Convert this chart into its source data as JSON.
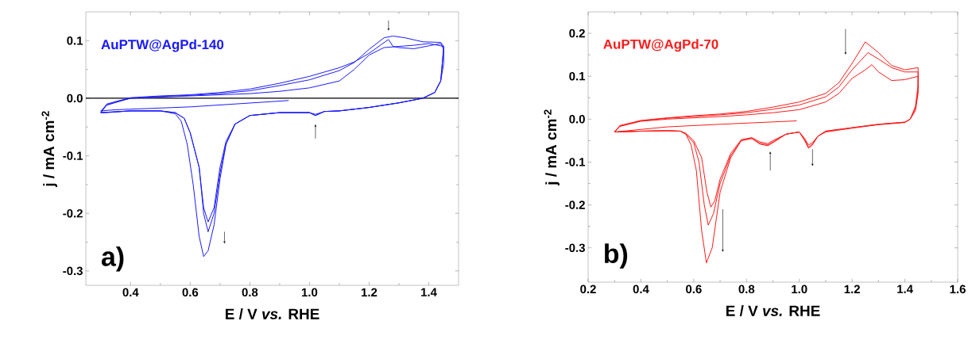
{
  "chart_data": [
    {
      "type": "line",
      "xlabel": "E / V *vs.* RHE",
      "ylabel": "j / mA cm$^{-2}$",
      "annotations": [
        "AuPTW@AgPd-140",
        "a)"
      ],
      "xlim": [
        0.25,
        1.5
      ],
      "ylim": [
        -0.325,
        0.15
      ],
      "xticks": [
        0.4,
        0.6,
        0.8,
        {
          "value": 1.0,
          "label": "1.0"
        },
        1.2,
        1.4
      ],
      "yticks": [
        -0.3,
        -0.2,
        -0.1,
        {
          "value": 0,
          "label": "0.0"
        },
        0.1
      ],
      "ref_lines": [
        {
          "axis": "y",
          "value": 0,
          "color": "#000000"
        }
      ],
      "series": [
        {
          "color": "#1a1aff",
          "x": [
            0.93,
            0.6,
            0.35,
            0.3,
            0.32,
            0.35,
            0.4,
            0.5,
            0.6,
            0.7,
            0.8,
            0.9,
            1.0,
            1.1,
            1.15,
            1.2,
            1.25,
            1.28,
            1.32,
            1.38,
            1.44,
            1.45,
            1.45,
            1.44,
            1.42,
            1.38,
            1.35,
            1.3,
            1.2,
            1.1,
            1.05,
            1.02,
            1.0,
            0.9,
            0.8,
            0.75,
            0.72,
            0.7,
            0.68,
            0.66,
            0.645,
            0.63,
            0.61,
            0.59,
            0.57,
            0.55,
            0.5,
            0.4,
            0.32,
            0.3,
            0.32,
            0.4,
            0.5,
            0.6,
            0.7,
            0.8,
            0.9,
            1.0,
            1.1,
            1.15,
            1.2,
            1.24,
            1.265,
            1.28,
            1.3,
            1.35,
            1.44,
            1.45,
            1.44,
            1.42,
            1.38,
            1.3,
            1.2,
            1.1,
            1.05,
            1.02,
            1.0,
            0.9,
            0.8,
            0.75,
            0.72,
            0.7,
            0.68,
            0.66,
            0.645,
            0.63,
            0.6,
            0.58,
            0.55,
            0.5,
            0.4,
            0.3,
            0.32,
            0.4,
            0.5,
            0.6,
            0.7,
            0.8,
            0.9,
            1.0,
            1.1,
            1.15,
            1.2,
            1.25,
            1.3,
            1.35,
            1.4,
            1.45,
            1.44,
            1.42,
            1.38,
            1.3,
            1.2,
            1.1,
            1.05,
            1.02,
            1.0,
            0.9,
            0.8,
            0.75,
            0.72,
            0.7,
            0.68,
            0.66,
            0.645,
            0.63,
            0.6,
            0.58,
            0.55,
            0.5,
            0.4,
            0.3
          ],
          "values": [
            -0.004,
            -0.015,
            -0.02,
            -0.022,
            -0.012,
            -0.006,
            0.0,
            0.003,
            0.005,
            0.008,
            0.013,
            0.022,
            0.032,
            0.048,
            0.062,
            0.085,
            0.105,
            0.108,
            0.105,
            0.098,
            0.097,
            0.09,
            0.06,
            0.03,
            0.01,
            0.0,
            -0.003,
            -0.008,
            -0.016,
            -0.022,
            -0.023,
            -0.03,
            -0.025,
            -0.025,
            -0.03,
            -0.045,
            -0.08,
            -0.14,
            -0.22,
            -0.265,
            -0.275,
            -0.24,
            -0.15,
            -0.08,
            -0.04,
            -0.027,
            -0.022,
            -0.022,
            -0.025,
            -0.025,
            -0.01,
            0.001,
            0.004,
            0.006,
            0.01,
            0.016,
            0.026,
            0.038,
            0.053,
            0.063,
            0.078,
            0.093,
            0.102,
            0.09,
            0.088,
            0.086,
            0.095,
            0.085,
            0.03,
            0.01,
            0.0,
            -0.008,
            -0.016,
            -0.022,
            -0.023,
            -0.03,
            -0.025,
            -0.025,
            -0.03,
            -0.045,
            -0.08,
            -0.13,
            -0.2,
            -0.232,
            -0.2,
            -0.12,
            -0.06,
            -0.035,
            -0.025,
            -0.022,
            -0.022,
            -0.025,
            -0.012,
            0.0,
            0.002,
            0.004,
            0.006,
            0.008,
            0.012,
            0.018,
            0.03,
            0.05,
            0.075,
            0.088,
            0.09,
            0.092,
            0.095,
            0.09,
            0.03,
            0.01,
            0.0,
            -0.008,
            -0.016,
            -0.022,
            -0.023,
            -0.028,
            -0.025,
            -0.025,
            -0.03,
            -0.045,
            -0.075,
            -0.12,
            -0.19,
            -0.215,
            -0.19,
            -0.12,
            -0.06,
            -0.035,
            -0.025,
            -0.022,
            -0.022,
            -0.025
          ]
        }
      ]
    },
    {
      "type": "line",
      "xlabel": "E / V *vs.* RHE",
      "ylabel": "j / mA cm$^{-2}$",
      "annotations": [
        "AuPTW@AgPd-70",
        "b)"
      ],
      "xlim": [
        0.2,
        1.6
      ],
      "ylim": [
        -0.38,
        0.25
      ],
      "xticks": [
        0.2,
        0.4,
        0.6,
        0.8,
        {
          "value": 1.0,
          "label": "1.0"
        },
        1.2,
        1.4,
        1.6
      ],
      "yticks": [
        -0.3,
        -0.2,
        -0.1,
        {
          "value": 0,
          "label": "0.0"
        },
        0.1,
        0.2
      ],
      "series": [
        {
          "color": "#ff1a1a",
          "x": [
            0.99,
            0.7,
            0.5,
            0.3,
            0.32,
            0.4,
            0.5,
            0.6,
            0.7,
            0.8,
            0.9,
            1.0,
            1.1,
            1.15,
            1.2,
            1.25,
            1.3,
            1.35,
            1.4,
            1.45,
            1.45,
            1.44,
            1.42,
            1.4,
            1.3,
            1.2,
            1.1,
            1.07,
            1.05,
            1.035,
            1.02,
            1.0,
            0.95,
            0.9,
            0.88,
            0.85,
            0.82,
            0.78,
            0.74,
            0.7,
            0.67,
            0.648,
            0.63,
            0.61,
            0.59,
            0.57,
            0.55,
            0.5,
            0.4,
            0.3,
            0.32,
            0.4,
            0.5,
            0.6,
            0.7,
            0.8,
            0.9,
            1.0,
            1.1,
            1.15,
            1.2,
            1.26,
            1.3,
            1.35,
            1.4,
            1.45,
            1.45,
            1.44,
            1.42,
            1.4,
            1.3,
            1.2,
            1.1,
            1.07,
            1.05,
            1.035,
            1.02,
            1.0,
            0.95,
            0.9,
            0.88,
            0.85,
            0.82,
            0.78,
            0.74,
            0.7,
            0.675,
            0.655,
            0.64,
            0.62,
            0.6,
            0.57,
            0.55,
            0.5,
            0.4,
            0.3,
            0.32,
            0.4,
            0.5,
            0.6,
            0.7,
            0.8,
            0.9,
            1.0,
            1.1,
            1.15,
            1.2,
            1.25,
            1.275,
            1.3,
            1.35,
            1.4,
            1.45,
            1.45,
            1.44,
            1.42,
            1.4,
            1.3,
            1.2,
            1.1,
            1.07,
            1.05,
            1.035,
            1.02,
            1.0,
            0.95,
            0.9,
            0.88,
            0.85,
            0.82,
            0.78,
            0.74,
            0.7,
            0.68,
            0.665,
            0.65,
            0.63,
            0.6,
            0.57,
            0.55,
            0.5,
            0.4,
            0.3
          ],
          "values": [
            -0.004,
            -0.012,
            -0.018,
            -0.03,
            -0.015,
            -0.003,
            0.003,
            0.008,
            0.012,
            0.018,
            0.028,
            0.04,
            0.06,
            0.085,
            0.13,
            0.18,
            0.155,
            0.125,
            0.115,
            0.12,
            0.08,
            0.03,
            0.0,
            -0.007,
            -0.012,
            -0.02,
            -0.028,
            -0.04,
            -0.06,
            -0.068,
            -0.05,
            -0.03,
            -0.035,
            -0.055,
            -0.062,
            -0.058,
            -0.045,
            -0.05,
            -0.09,
            -0.17,
            -0.3,
            -0.335,
            -0.26,
            -0.12,
            -0.06,
            -0.035,
            -0.028,
            -0.027,
            -0.028,
            -0.03,
            -0.016,
            -0.004,
            0.002,
            0.006,
            0.01,
            0.015,
            0.023,
            0.033,
            0.052,
            0.075,
            0.115,
            0.155,
            0.14,
            0.12,
            0.11,
            0.11,
            0.07,
            0.025,
            0.0,
            -0.007,
            -0.012,
            -0.02,
            -0.028,
            -0.04,
            -0.058,
            -0.065,
            -0.048,
            -0.03,
            -0.035,
            -0.053,
            -0.06,
            -0.056,
            -0.045,
            -0.05,
            -0.085,
            -0.15,
            -0.22,
            -0.247,
            -0.2,
            -0.1,
            -0.055,
            -0.035,
            -0.028,
            -0.027,
            -0.028,
            -0.03,
            -0.017,
            -0.005,
            0.0,
            0.003,
            0.006,
            0.01,
            0.015,
            0.022,
            0.04,
            0.06,
            0.095,
            0.115,
            0.127,
            0.11,
            0.09,
            0.092,
            0.1,
            0.06,
            0.02,
            0.0,
            -0.008,
            -0.013,
            -0.021,
            -0.03,
            -0.04,
            -0.055,
            -0.06,
            -0.045,
            -0.03,
            -0.035,
            -0.05,
            -0.057,
            -0.053,
            -0.043,
            -0.048,
            -0.08,
            -0.14,
            -0.19,
            -0.205,
            -0.17,
            -0.09,
            -0.05,
            -0.033,
            -0.028,
            -0.027,
            -0.028,
            -0.03
          ]
        }
      ]
    }
  ]
}
